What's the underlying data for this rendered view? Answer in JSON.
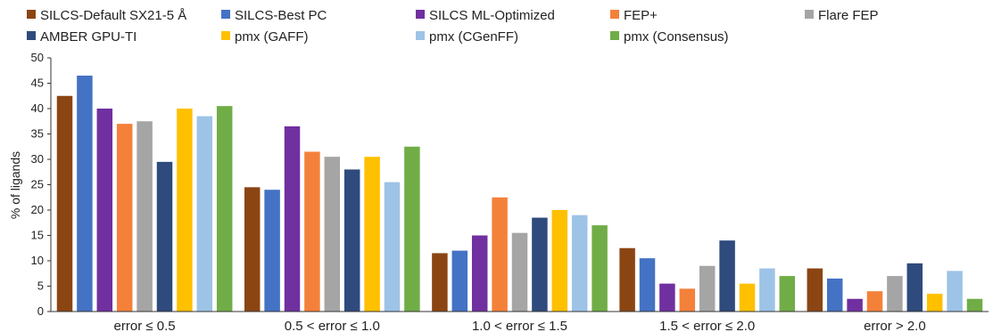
{
  "chart_data": {
    "type": "bar",
    "title": "",
    "xlabel": "",
    "ylabel": "% of ligands",
    "ylim": [
      0,
      50
    ],
    "yticks": [
      0,
      5,
      10,
      15,
      20,
      25,
      30,
      35,
      40,
      45,
      50
    ],
    "grid": false,
    "legend_position": "top",
    "categories": [
      "error ≤ 0.5",
      "0.5 < error ≤ 1.0",
      "1.0 < error ≤ 1.5",
      "1.5 < error ≤ 2.0",
      "error > 2.0"
    ],
    "series": [
      {
        "name": "SILCS-Default SX21-5 Å",
        "color": "#8B4513",
        "values": [
          42.5,
          24.5,
          11.5,
          12.5,
          8.5
        ]
      },
      {
        "name": "SILCS-Best PC",
        "color": "#4472C4",
        "values": [
          46.5,
          24.0,
          12.0,
          10.5,
          6.5
        ]
      },
      {
        "name": "SILCS ML-Optimized",
        "color": "#7030A0",
        "values": [
          40.0,
          36.5,
          15.0,
          5.5,
          2.5
        ]
      },
      {
        "name": "FEP+",
        "color": "#F4813A",
        "values": [
          37.0,
          31.5,
          22.5,
          4.5,
          4.0
        ]
      },
      {
        "name": "Flare FEP",
        "color": "#A5A5A5",
        "values": [
          37.5,
          30.5,
          15.5,
          9.0,
          7.0
        ]
      },
      {
        "name": "AMBER GPU-TI",
        "color": "#2F4A7C",
        "values": [
          29.5,
          28.0,
          18.5,
          14.0,
          9.5
        ]
      },
      {
        "name": "pmx (GAFF)",
        "color": "#FFC000",
        "values": [
          40.0,
          30.5,
          20.0,
          5.5,
          3.5
        ]
      },
      {
        "name": "pmx (CGenFF)",
        "color": "#9DC3E6",
        "values": [
          38.5,
          25.5,
          19.0,
          8.5,
          8.0
        ]
      },
      {
        "name": "pmx (Consensus)",
        "color": "#70AD47",
        "values": [
          40.5,
          32.5,
          17.0,
          7.0,
          2.5
        ]
      }
    ]
  }
}
